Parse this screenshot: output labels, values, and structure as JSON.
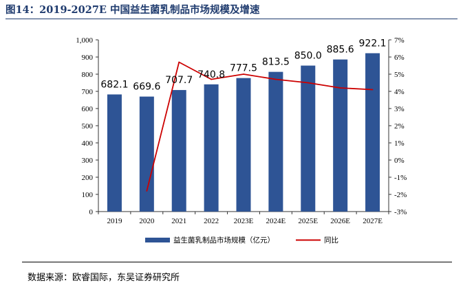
{
  "figure": {
    "title": "图14：2019-2027E 中国益生菌乳制品市场规模及增速",
    "source": "数据来源：欧睿国际，东吴证券研究所"
  },
  "colors": {
    "bar": "#2e5495",
    "line": "#cc0000",
    "title": "#1f3b6e"
  },
  "chart_data": {
    "type": "bar",
    "categories": [
      "2019",
      "2020",
      "2021",
      "2022",
      "2023E",
      "2024E",
      "2025E",
      "2026E",
      "2027E"
    ],
    "series": [
      {
        "name": "益生菌乳制品市场规模（亿元）",
        "type": "bar",
        "axis": "left",
        "values": [
          682.1,
          669.6,
          707.7,
          740.8,
          777.5,
          813.5,
          850.0,
          885.6,
          922.1
        ],
        "data_labels": [
          "682.1",
          "669.6",
          "707.7",
          "740.8",
          "777.5",
          "813.5",
          "850.0",
          "885.6",
          "922.1"
        ]
      },
      {
        "name": "同比",
        "type": "line",
        "axis": "right",
        "values": [
          null,
          -1.8,
          5.7,
          4.7,
          5.0,
          4.7,
          4.5,
          4.2,
          4.1
        ]
      }
    ],
    "y_left": {
      "lim": [
        0,
        1000
      ],
      "ticks": [
        0,
        100,
        200,
        300,
        400,
        500,
        600,
        700,
        800,
        900,
        1000
      ],
      "tick_labels": [
        "0",
        "100",
        "200",
        "300",
        "400",
        "500",
        "600",
        "700",
        "800",
        "900",
        "1,000"
      ]
    },
    "y_right": {
      "lim": [
        -3,
        7
      ],
      "ticks": [
        -3,
        -2,
        -1,
        0,
        1,
        2,
        3,
        4,
        5,
        6,
        7
      ],
      "tick_labels": [
        "-3%",
        "-2%",
        "-1%",
        "0%",
        "1%",
        "2%",
        "3%",
        "4%",
        "5%",
        "6%",
        "7%"
      ]
    },
    "grid": false,
    "legend_position": "bottom"
  }
}
